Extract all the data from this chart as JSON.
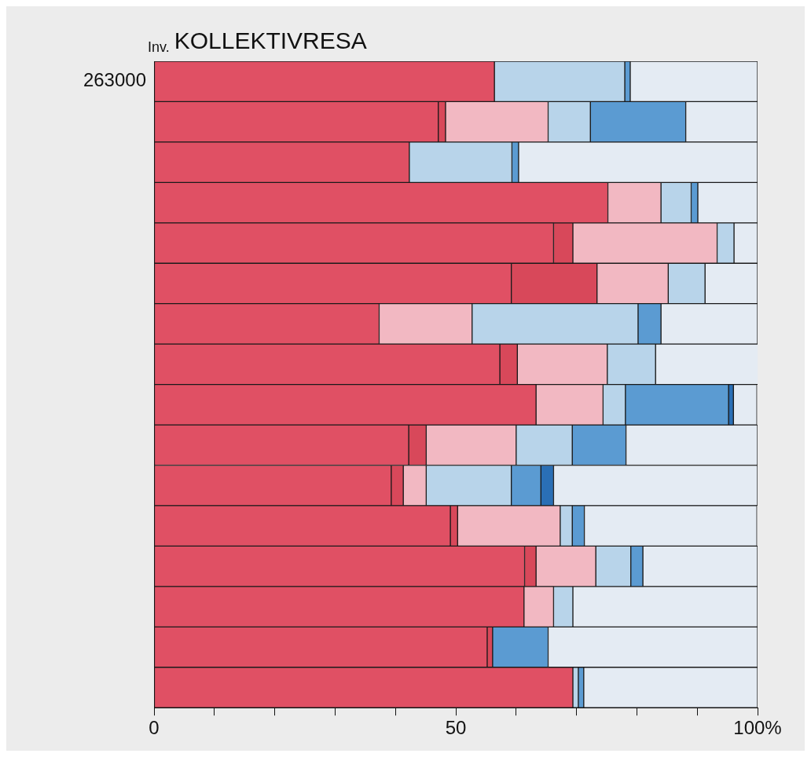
{
  "chart_data": {
    "type": "bar",
    "orientation": "horizontal",
    "stacked": true,
    "title": "KOLLEKTIVRESA",
    "ylabel": "Inv.",
    "annotations": [
      "263000"
    ],
    "categories": [
      null,
      null,
      null,
      null,
      null,
      null,
      null,
      null,
      null,
      null,
      null,
      null,
      null,
      null,
      null,
      null
    ],
    "series": [
      {
        "color": "#e05064",
        "values": [
          56.4,
          47.1,
          42.3,
          75.2,
          66.2,
          59.2,
          37.3,
          57.3,
          63.3,
          42.2,
          39.3,
          49.1,
          61.4,
          61.3,
          55.2,
          69.4
        ]
      },
      {
        "color": "#d8485a",
        "values": [
          0,
          1.2,
          0,
          0,
          3.2,
          14.2,
          0,
          2.9,
          0,
          2.9,
          2.0,
          1.2,
          1.9,
          0,
          0.9,
          0
        ]
      },
      {
        "color": "#f2b8c2",
        "values": [
          0,
          17.0,
          0,
          8.8,
          23.9,
          11.8,
          15.4,
          14.9,
          11.1,
          14.9,
          3.8,
          17.0,
          9.9,
          4.9,
          0,
          0
        ]
      },
      {
        "color": "#b8d4ea",
        "values": [
          21.6,
          7.0,
          17.0,
          5.0,
          2.8,
          6.1,
          27.5,
          8.0,
          3.7,
          9.3,
          14.1,
          2.0,
          5.8,
          3.2,
          0,
          0.9
        ]
      },
      {
        "color": "#5b9bd2",
        "values": [
          0.9,
          15.8,
          1.1,
          1.1,
          0,
          0,
          3.8,
          0,
          17.1,
          8.9,
          4.9,
          2.0,
          2.0,
          0,
          9.2,
          0.9
        ]
      },
      {
        "color": "#2a6fb5",
        "values": [
          0,
          0,
          0,
          0,
          0,
          0,
          0,
          0,
          0.8,
          0,
          2.1,
          0,
          0,
          0,
          0,
          0
        ]
      },
      {
        "color": "#e4ebf3",
        "values": [
          21.1,
          11.9,
          39.6,
          9.9,
          3.9,
          8.7,
          16.0,
          17.0,
          3.9,
          21.8,
          33.8,
          28.6,
          19.0,
          30.6,
          34.7,
          28.8
        ]
      }
    ],
    "xlim": [
      0,
      100
    ],
    "xticks": [
      {
        "value": 0,
        "label": "0"
      },
      {
        "value": 10,
        "label": null
      },
      {
        "value": 20,
        "label": null
      },
      {
        "value": 30,
        "label": null
      },
      {
        "value": 40,
        "label": null
      },
      {
        "value": 50,
        "label": "50"
      },
      {
        "value": 60,
        "label": null
      },
      {
        "value": 70,
        "label": null
      },
      {
        "value": 80,
        "label": null
      },
      {
        "value": 90,
        "label": null
      },
      {
        "value": 100,
        "label": "100%"
      }
    ],
    "tick_labels": "x",
    "legend": false,
    "grid": false
  }
}
